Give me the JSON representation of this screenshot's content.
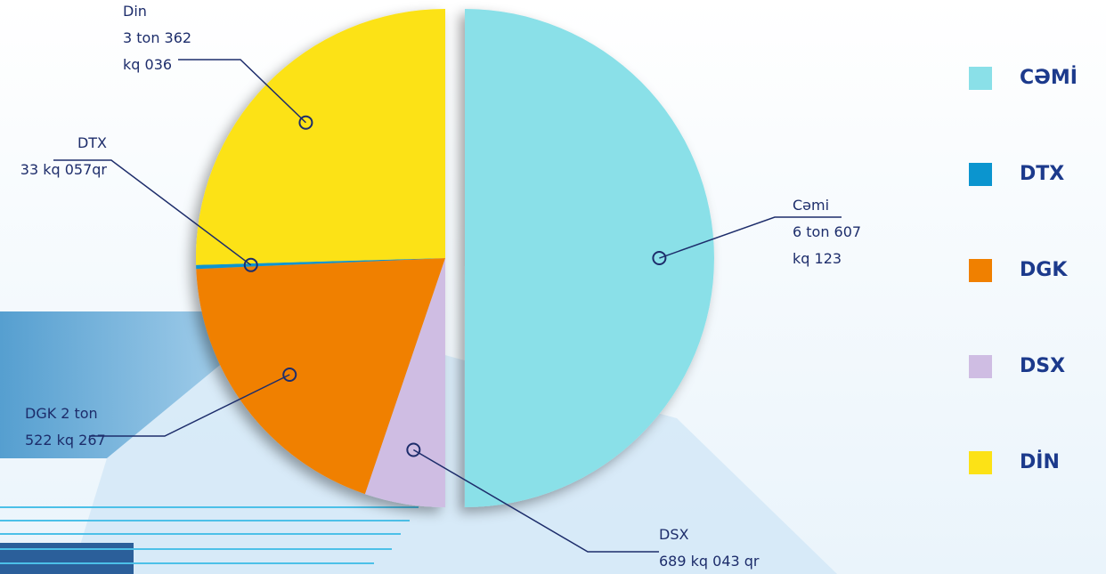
{
  "chart_data": {
    "type": "pie",
    "categories": [
      "CƏMİ",
      "DTX",
      "DGK",
      "DSX",
      "DİN"
    ],
    "label_names": [
      "Cəmi",
      "DTX",
      "DGK",
      "DSX",
      "Din"
    ],
    "values": [
      6607.123,
      33.057,
      2522.267,
      689.043,
      3362.036
    ],
    "value_labels": [
      "6 ton 607 kq 123 qr",
      "33 kq 057qr",
      "2 ton 522 kq 267 qr",
      "689 kq 043 qr",
      "3 ton 362 kq 036 qr"
    ],
    "colors": [
      "#8ae0e8",
      "#0b95cf",
      "#f08000",
      "#cfbde3",
      "#fce216"
    ],
    "legend": "right"
  }
}
